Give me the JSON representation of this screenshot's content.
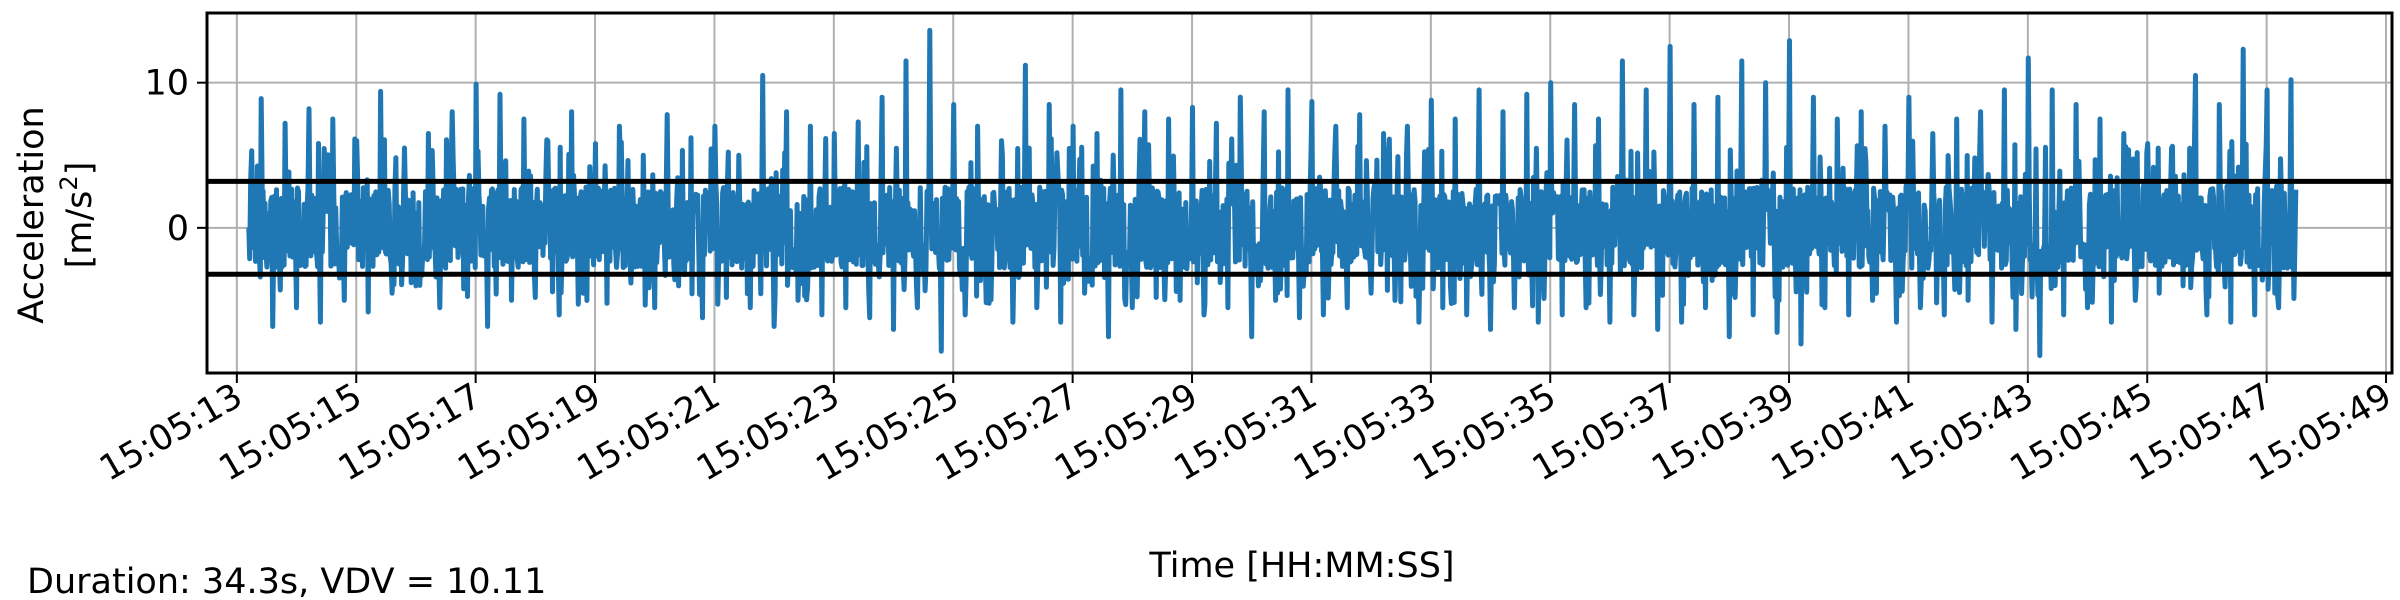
{
  "chart_data": {
    "type": "line",
    "title": "",
    "xlabel": "Time [HH:MM:SS]",
    "ylabel_line1": "Acceleration",
    "ylabel_line2_base": "[m/s",
    "ylabel_line2_sup": "2",
    "ylabel_line2_end": "]",
    "footer_note": "Duration: 34.3s, VDV = 10.11",
    "x_ticks": [
      "15:05:13",
      "15:05:15",
      "15:05:17",
      "15:05:19",
      "15:05:21",
      "15:05:23",
      "15:05:25",
      "15:05:27",
      "15:05:29",
      "15:05:31",
      "15:05:33",
      "15:05:35",
      "15:05:37",
      "15:05:39",
      "15:05:41",
      "15:05:43",
      "15:05:45",
      "15:05:47",
      "15:05:49"
    ],
    "y_ticks": [
      "10",
      "0"
    ],
    "y_tick_values": [
      10,
      0
    ],
    "xlim": [
      "15:05:12.5",
      "15:05:49.1"
    ],
    "ylim": [
      -10,
      14.8
    ],
    "grid": true,
    "series": [
      {
        "color": "#1f77b4",
        "signal_start": "15:05:13.2",
        "signal_end": "15:05:47.5",
        "points": [
          [
            "15:05:13.2",
            0.0
          ],
          [
            "15:05:13.4",
            8.9
          ],
          [
            "15:05:13.6",
            -6.8
          ],
          [
            "15:05:13.8",
            7.2
          ],
          [
            "15:05:14.0",
            -5.5
          ],
          [
            "15:05:14.2",
            8.2
          ],
          [
            "15:05:14.4",
            -6.5
          ],
          [
            "15:05:14.6",
            7.5
          ],
          [
            "15:05:14.8",
            -5.0
          ],
          [
            "15:05:15.0",
            6.0
          ],
          [
            "15:05:15.2",
            -5.8
          ],
          [
            "15:05:15.4",
            9.4
          ],
          [
            "15:05:15.6",
            -4.5
          ],
          [
            "15:05:15.8",
            5.5
          ],
          [
            "15:05:16.0",
            -4.0
          ],
          [
            "15:05:16.2",
            6.5
          ],
          [
            "15:05:16.4",
            -5.5
          ],
          [
            "15:05:16.6",
            8.0
          ],
          [
            "15:05:16.8",
            -4.2
          ],
          [
            "15:05:17.0",
            9.9
          ],
          [
            "15:05:17.2",
            -6.8
          ],
          [
            "15:05:17.4",
            9.2
          ],
          [
            "15:05:17.6",
            -5.0
          ],
          [
            "15:05:17.8",
            7.5
          ],
          [
            "15:05:18.0",
            -4.8
          ],
          [
            "15:05:18.2",
            6.0
          ],
          [
            "15:05:18.4",
            -6.0
          ],
          [
            "15:05:18.6",
            8.0
          ],
          [
            "15:05:18.8",
            -4.5
          ],
          [
            "15:05:19.0",
            5.8
          ],
          [
            "15:05:19.2",
            -5.2
          ],
          [
            "15:05:19.4",
            7.0
          ],
          [
            "15:05:19.6",
            -3.8
          ],
          [
            "15:05:19.8",
            5.0
          ],
          [
            "15:05:20.0",
            -5.5
          ],
          [
            "15:05:20.2",
            7.8
          ],
          [
            "15:05:20.4",
            -4.0
          ],
          [
            "15:05:20.6",
            6.2
          ],
          [
            "15:05:20.8",
            -6.2
          ],
          [
            "15:05:21.0",
            7.0
          ],
          [
            "15:05:21.2",
            -4.8
          ],
          [
            "15:05:21.4",
            5.0
          ],
          [
            "15:05:21.6",
            -5.5
          ],
          [
            "15:05:21.8",
            10.5
          ],
          [
            "15:05:22.0",
            -6.8
          ],
          [
            "15:05:22.2",
            8.0
          ],
          [
            "15:05:22.4",
            -5.0
          ],
          [
            "15:05:22.6",
            7.0
          ],
          [
            "15:05:22.8",
            -6.0
          ],
          [
            "15:05:23.0",
            6.5
          ],
          [
            "15:05:23.2",
            -5.5
          ],
          [
            "15:05:23.4",
            7.3
          ],
          [
            "15:05:23.6",
            -6.2
          ],
          [
            "15:05:23.8",
            9.0
          ],
          [
            "15:05:24.0",
            -7.0
          ],
          [
            "15:05:24.2",
            11.5
          ],
          [
            "15:05:24.4",
            -5.5
          ],
          [
            "15:05:24.6",
            13.6
          ],
          [
            "15:05:24.8",
            -8.5
          ],
          [
            "15:05:25.0",
            8.5
          ],
          [
            "15:05:25.2",
            -6.0
          ],
          [
            "15:05:25.4",
            7.0
          ],
          [
            "15:05:25.6",
            -5.2
          ],
          [
            "15:05:25.8",
            6.0
          ],
          [
            "15:05:26.0",
            -6.5
          ],
          [
            "15:05:26.2",
            11.2
          ],
          [
            "15:05:26.4",
            -5.5
          ],
          [
            "15:05:26.6",
            8.5
          ],
          [
            "15:05:26.8",
            -6.5
          ],
          [
            "15:05:27.0",
            7.0
          ],
          [
            "15:05:27.2",
            -4.5
          ],
          [
            "15:05:27.4",
            6.5
          ],
          [
            "15:05:27.6",
            -7.5
          ],
          [
            "15:05:27.8",
            9.5
          ],
          [
            "15:05:28.0",
            -5.5
          ],
          [
            "15:05:28.2",
            8.0
          ],
          [
            "15:05:28.4",
            -4.8
          ],
          [
            "15:05:28.6",
            7.5
          ],
          [
            "15:05:28.8",
            -5.0
          ],
          [
            "15:05:29.0",
            8.3
          ],
          [
            "15:05:29.2",
            -6.0
          ],
          [
            "15:05:29.4",
            7.2
          ],
          [
            "15:05:29.6",
            -5.5
          ],
          [
            "15:05:29.8",
            9.0
          ],
          [
            "15:05:30.0",
            -7.5
          ],
          [
            "15:05:30.2",
            8.0
          ],
          [
            "15:05:30.4",
            -5.0
          ],
          [
            "15:05:30.6",
            9.5
          ],
          [
            "15:05:30.8",
            -6.2
          ],
          [
            "15:05:31.0",
            8.7
          ],
          [
            "15:05:31.2",
            -6.0
          ],
          [
            "15:05:31.4",
            7.0
          ],
          [
            "15:05:31.6",
            -5.5
          ],
          [
            "15:05:31.8",
            7.8
          ],
          [
            "15:05:32.0",
            -4.5
          ],
          [
            "15:05:32.2",
            6.5
          ],
          [
            "15:05:32.4",
            -5.0
          ],
          [
            "15:05:32.6",
            7.0
          ],
          [
            "15:05:32.8",
            -6.5
          ],
          [
            "15:05:33.0",
            8.8
          ],
          [
            "15:05:33.2",
            -5.5
          ],
          [
            "15:05:33.4",
            7.5
          ],
          [
            "15:05:33.6",
            -6.0
          ],
          [
            "15:05:33.8",
            9.5
          ],
          [
            "15:05:34.0",
            -7.0
          ],
          [
            "15:05:34.2",
            8.0
          ],
          [
            "15:05:34.4",
            -5.5
          ],
          [
            "15:05:34.6",
            9.2
          ],
          [
            "15:05:34.8",
            -6.5
          ],
          [
            "15:05:35.0",
            10.0
          ],
          [
            "15:05:35.2",
            -6.0
          ],
          [
            "15:05:35.4",
            8.5
          ],
          [
            "15:05:35.6",
            -5.5
          ],
          [
            "15:05:35.8",
            7.5
          ],
          [
            "15:05:36.0",
            -6.5
          ],
          [
            "15:05:36.2",
            11.5
          ],
          [
            "15:05:36.4",
            -6.0
          ],
          [
            "15:05:36.6",
            9.5
          ],
          [
            "15:05:36.8",
            -7.0
          ],
          [
            "15:05:37.0",
            12.5
          ],
          [
            "15:05:37.2",
            -6.5
          ],
          [
            "15:05:37.4",
            8.5
          ],
          [
            "15:05:37.6",
            -5.5
          ],
          [
            "15:05:37.8",
            9.0
          ],
          [
            "15:05:38.0",
            -7.5
          ],
          [
            "15:05:38.2",
            11.5
          ],
          [
            "15:05:38.4",
            -6.0
          ],
          [
            "15:05:38.6",
            10.0
          ],
          [
            "15:05:38.8",
            -7.2
          ],
          [
            "15:05:39.0",
            12.9
          ],
          [
            "15:05:39.2",
            -8.0
          ],
          [
            "15:05:39.4",
            9.0
          ],
          [
            "15:05:39.6",
            -5.5
          ],
          [
            "15:05:39.8",
            7.5
          ],
          [
            "15:05:40.0",
            -6.0
          ],
          [
            "15:05:40.2",
            8.0
          ],
          [
            "15:05:40.4",
            -5.0
          ],
          [
            "15:05:40.6",
            7.0
          ],
          [
            "15:05:40.8",
            -6.5
          ],
          [
            "15:05:41.0",
            9.0
          ],
          [
            "15:05:41.2",
            -5.5
          ],
          [
            "15:05:41.4",
            6.5
          ],
          [
            "15:05:41.6",
            -6.0
          ],
          [
            "15:05:41.8",
            7.5
          ],
          [
            "15:05:42.0",
            -5.0
          ],
          [
            "15:05:42.2",
            8.0
          ],
          [
            "15:05:42.4",
            -6.5
          ],
          [
            "15:05:42.6",
            9.5
          ],
          [
            "15:05:42.8",
            -7.0
          ],
          [
            "15:05:43.0",
            11.7
          ],
          [
            "15:05:43.2",
            -8.8
          ],
          [
            "15:05:43.4",
            9.5
          ],
          [
            "15:05:43.6",
            -6.0
          ],
          [
            "15:05:43.8",
            8.5
          ],
          [
            "15:05:44.0",
            -5.5
          ],
          [
            "15:05:44.2",
            7.5
          ],
          [
            "15:05:44.4",
            -6.5
          ],
          [
            "15:05:44.6",
            6.5
          ],
          [
            "15:05:44.8",
            -5.0
          ],
          [
            "15:05:45.0",
            5.8
          ],
          [
            "15:05:45.2",
            -4.5
          ],
          [
            "15:05:45.4",
            5.5
          ],
          [
            "15:05:45.6",
            -4.0
          ],
          [
            "15:05:45.8",
            10.5
          ],
          [
            "15:05:46.0",
            -6.0
          ],
          [
            "15:05:46.2",
            8.5
          ],
          [
            "15:05:46.4",
            -6.5
          ],
          [
            "15:05:46.6",
            12.3
          ],
          [
            "15:05:46.8",
            -6.0
          ],
          [
            "15:05:47.0",
            9.5
          ],
          [
            "15:05:47.2",
            -5.5
          ],
          [
            "15:05:47.4",
            10.2
          ],
          [
            "15:05:47.5",
            -1.0
          ]
        ],
        "band_low": -2.8,
        "band_high": 2.8
      }
    ],
    "hlines": [
      3.2,
      -3.2
    ]
  }
}
